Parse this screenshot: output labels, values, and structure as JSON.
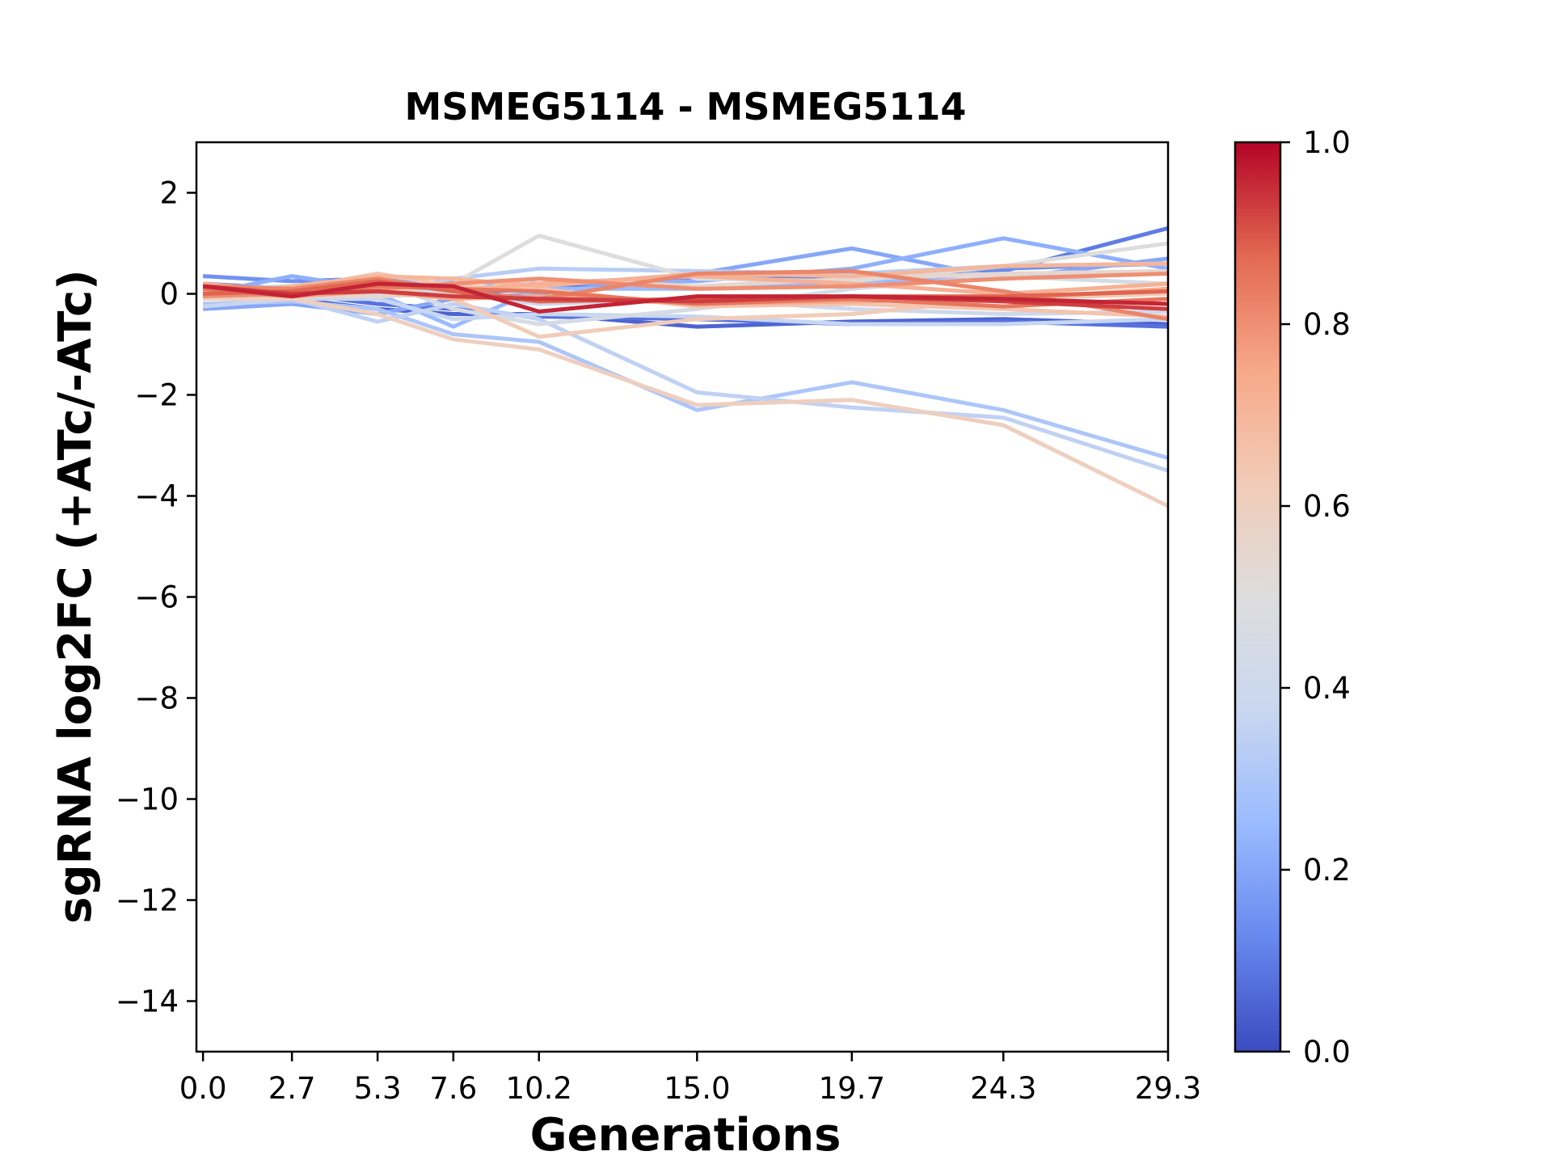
{
  "chart_data": {
    "type": "line",
    "title": "MSMEG5114 - MSMEG5114",
    "xlabel": "Generations",
    "ylabel": "sgRNA log2FC (+ATc/-ATc)",
    "x": [
      0.0,
      2.7,
      5.3,
      7.6,
      10.2,
      15.0,
      19.7,
      24.3,
      29.3
    ],
    "x_tick_labels": [
      "0.0",
      "2.7",
      "5.3",
      "7.6",
      "10.2",
      "15.0",
      "19.7",
      "24.3",
      "29.3"
    ],
    "xlim": [
      -0.2,
      29.3
    ],
    "ylim": [
      -15,
      3
    ],
    "y_ticks": [
      2,
      0,
      -2,
      -4,
      -6,
      -8,
      -10,
      -12,
      -14
    ],
    "y_tick_labels": [
      "2",
      "0",
      "−2",
      "−4",
      "−6",
      "−8",
      "−10",
      "−12",
      "−14"
    ],
    "grid": false,
    "colorbar": {
      "colormap": "coolwarm",
      "range": [
        0.0,
        1.0
      ],
      "ticks": [
        0.0,
        0.2,
        0.4,
        0.6,
        0.8,
        1.0
      ],
      "tick_labels": [
        "0.0",
        "0.2",
        "0.4",
        "0.6",
        "0.8",
        "1.0"
      ],
      "stops": [
        "#3b4cc0",
        "#6788ee",
        "#9abbff",
        "#c9d7f0",
        "#dddddd",
        "#f2cbb7",
        "#f7a889",
        "#e26952",
        "#b40426"
      ]
    },
    "series": [
      {
        "value": 0.05,
        "values": [
          0.0,
          -0.1,
          -0.3,
          -0.4,
          -0.4,
          -0.65,
          -0.55,
          -0.5,
          -0.6
        ]
      },
      {
        "value": 0.08,
        "values": [
          0.1,
          0.0,
          -0.2,
          -0.3,
          -0.45,
          -0.5,
          -0.6,
          -0.55,
          -0.65
        ]
      },
      {
        "value": 0.1,
        "values": [
          0.2,
          0.1,
          0.05,
          0.0,
          0.1,
          0.3,
          0.35,
          0.45,
          1.3
        ]
      },
      {
        "value": 0.15,
        "values": [
          0.35,
          0.25,
          0.3,
          0.1,
          0.2,
          0.35,
          0.4,
          0.5,
          0.6
        ]
      },
      {
        "value": 0.2,
        "values": [
          -0.3,
          -0.2,
          -0.4,
          -0.1,
          0.0,
          0.4,
          0.9,
          0.3,
          0.7
        ]
      },
      {
        "value": 0.22,
        "values": [
          0.0,
          0.35,
          0.1,
          0.25,
          0.2,
          0.25,
          0.5,
          1.1,
          0.5
        ]
      },
      {
        "value": 0.25,
        "values": [
          0.0,
          -0.1,
          0.0,
          -0.65,
          0.1,
          0.1,
          0.25,
          0.3,
          0.45
        ]
      },
      {
        "value": 0.3,
        "values": [
          -0.2,
          -0.15,
          -0.3,
          -0.8,
          -0.95,
          -2.3,
          -1.75,
          -2.3,
          -3.25
        ]
      },
      {
        "value": 0.33,
        "values": [
          -0.1,
          0.0,
          0.0,
          0.3,
          0.5,
          0.45,
          0.4,
          0.55,
          0.6
        ]
      },
      {
        "value": 0.35,
        "values": [
          0.2,
          -0.1,
          -0.55,
          -0.2,
          -0.5,
          -1.95,
          -2.25,
          -2.45,
          -3.5
        ]
      },
      {
        "value": 0.37,
        "values": [
          -0.25,
          -0.1,
          -0.1,
          -0.5,
          -0.4,
          -0.45,
          -0.6,
          -0.6,
          -0.5
        ]
      },
      {
        "value": 0.4,
        "values": [
          0.1,
          0.15,
          0.2,
          0.0,
          -0.2,
          -0.1,
          -0.3,
          -0.4,
          -0.35
        ]
      },
      {
        "value": 0.45,
        "values": [
          0.0,
          0.1,
          0.25,
          -0.3,
          -0.6,
          -0.3,
          0.1,
          0.35,
          0.2
        ]
      },
      {
        "value": 0.5,
        "values": [
          0.0,
          0.05,
          0.05,
          0.2,
          1.15,
          0.3,
          0.25,
          0.55,
          1.0
        ]
      },
      {
        "value": 0.55,
        "values": [
          0.0,
          -0.05,
          -0.05,
          0.0,
          0.3,
          0.15,
          0.3,
          0.4,
          0.45
        ]
      },
      {
        "value": 0.6,
        "values": [
          -0.1,
          -0.1,
          -0.4,
          -0.9,
          -1.1,
          -2.2,
          -2.1,
          -2.6,
          -4.2
        ]
      },
      {
        "value": 0.62,
        "values": [
          0.05,
          0.05,
          0.15,
          -0.1,
          -0.85,
          -0.5,
          -0.4,
          -0.1,
          0.0
        ]
      },
      {
        "value": 0.65,
        "values": [
          0.1,
          0.1,
          0.4,
          0.15,
          0.1,
          -0.25,
          -0.2,
          -0.3,
          -0.45
        ]
      },
      {
        "value": 0.7,
        "values": [
          -0.05,
          0.15,
          0.35,
          0.3,
          0.15,
          0.4,
          0.35,
          0.55,
          0.6
        ]
      },
      {
        "value": 0.72,
        "values": [
          0.2,
          0.05,
          0.3,
          0.05,
          0.2,
          0.35,
          0.2,
          0.0,
          0.2
        ]
      },
      {
        "value": 0.75,
        "values": [
          0.05,
          -0.05,
          0.05,
          -0.1,
          -0.05,
          -0.2,
          -0.15,
          -0.1,
          0.1
        ]
      },
      {
        "value": 0.8,
        "values": [
          -0.05,
          0.0,
          0.1,
          0.2,
          0.3,
          0.1,
          0.15,
          0.3,
          0.4
        ]
      },
      {
        "value": 0.82,
        "values": [
          0.15,
          0.1,
          0.3,
          0.05,
          -0.1,
          0.4,
          0.45,
          0.05,
          -0.5
        ]
      },
      {
        "value": 0.85,
        "values": [
          0.1,
          -0.05,
          0.15,
          0.1,
          0.05,
          -0.2,
          -0.1,
          -0.25,
          -0.1
        ]
      },
      {
        "value": 0.88,
        "values": [
          0.0,
          0.05,
          0.25,
          0.05,
          -0.15,
          -0.1,
          -0.05,
          -0.05,
          0.05
        ]
      },
      {
        "value": 0.93,
        "values": [
          0.15,
          0.0,
          0.05,
          -0.05,
          -0.1,
          -0.15,
          -0.05,
          -0.15,
          -0.3
        ]
      },
      {
        "value": 0.96,
        "values": [
          0.15,
          -0.05,
          0.2,
          0.15,
          -0.35,
          -0.05,
          -0.05,
          -0.1,
          -0.2
        ]
      }
    ]
  }
}
